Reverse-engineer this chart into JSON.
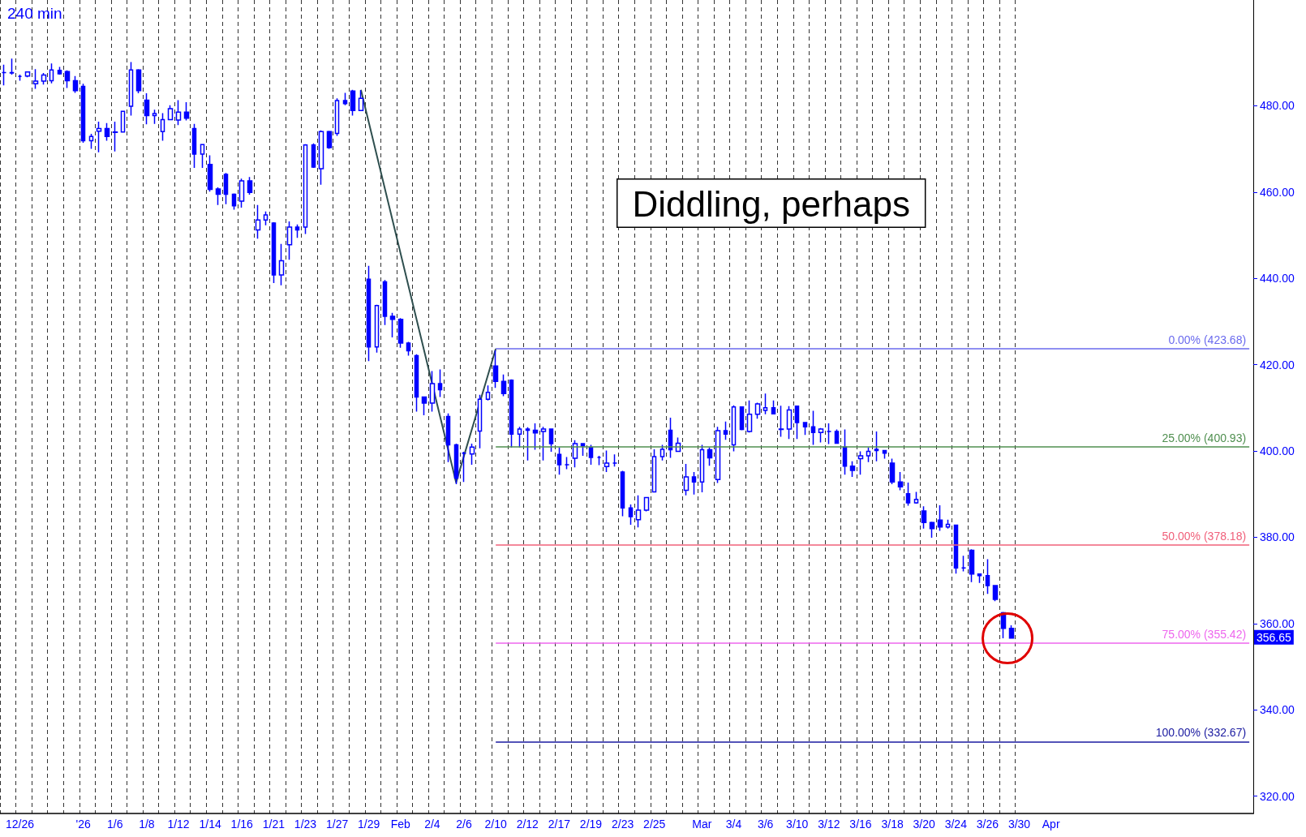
{
  "chart_data": {
    "type": "candlestick",
    "title": "240 min",
    "color": "#0000ff",
    "grid": "x",
    "categories": [
      null,
      null,
      "12/26",
      null,
      null,
      null,
      null,
      null,
      null,
      null,
      "'26",
      null,
      null,
      null,
      "1/6",
      null,
      null,
      null,
      "1/8",
      null,
      null,
      null,
      "1/12",
      null,
      null,
      null,
      "1/14",
      null,
      null,
      null,
      "1/16",
      null,
      null,
      null,
      "1/21",
      null,
      null,
      null,
      "1/23",
      null,
      null,
      null,
      "1/27",
      null,
      null,
      null,
      "1/29",
      null,
      null,
      null,
      "Feb",
      null,
      null,
      null,
      "2/4",
      null,
      null,
      null,
      "2/6",
      null,
      null,
      null,
      "2/10",
      null,
      null,
      null,
      "2/12",
      null,
      null,
      null,
      "2/17",
      null,
      null,
      null,
      "2/19",
      null,
      null,
      null,
      "2/23",
      null,
      null,
      null,
      "2/25",
      null,
      null,
      null,
      null,
      null,
      "Mar",
      null,
      null,
      null,
      "3/4",
      null,
      null,
      null,
      "3/6",
      null,
      null,
      null,
      "3/10",
      null,
      null,
      null,
      "3/12",
      null,
      null,
      null,
      "3/16",
      null,
      null,
      null,
      "3/18",
      null,
      null,
      null,
      "3/20",
      null,
      null,
      null,
      "3/24",
      null,
      null,
      null,
      "3/26",
      null,
      null,
      null,
      "3/30",
      null,
      null,
      null,
      "Apr",
      null,
      null,
      null,
      null,
      null,
      null,
      null,
      null,
      null,
      null,
      null,
      null,
      null,
      null,
      null,
      null,
      null,
      null,
      null,
      null,
      null,
      null,
      null,
      null,
      null
    ],
    "ohlc": [
      [
        487.7,
        489.5,
        484.7,
        487.7
      ],
      [
        487.7,
        490.9,
        487.2,
        487.6
      ],
      [
        486.8,
        487.2,
        485.8,
        486.8
      ],
      [
        486.9,
        487.9,
        486.6,
        487.8
      ],
      [
        485.1,
        488.5,
        483.9,
        485.7
      ],
      [
        485.7,
        487.6,
        484.9,
        487.1
      ],
      [
        485.8,
        489.8,
        485.2,
        488.3
      ],
      [
        488.2,
        489.0,
        487.2,
        487.4
      ],
      [
        487.9,
        488.2,
        484.1,
        485.8
      ],
      [
        485.8,
        486.9,
        483.0,
        483.5
      ],
      [
        484.5,
        485.1,
        471.4,
        471.9
      ],
      [
        471.9,
        473.5,
        470.0,
        472.9
      ],
      [
        474.1,
        476.3,
        469.2,
        474.7
      ],
      [
        474.7,
        476.0,
        471.9,
        472.9
      ],
      [
        473.8,
        476.3,
        469.4,
        473.9
      ],
      [
        473.9,
        478.8,
        473.8,
        478.7
      ],
      [
        479.9,
        490.1,
        477.7,
        488.3
      ],
      [
        488.3,
        488.5,
        482.9,
        483.5
      ],
      [
        481.3,
        482.9,
        475.7,
        477.7
      ],
      [
        477.7,
        479.1,
        475.8,
        478.2
      ],
      [
        474.0,
        478.3,
        471.9,
        476.8
      ],
      [
        476.8,
        480.1,
        476.8,
        479.3
      ],
      [
        476.7,
        481.3,
        475.5,
        478.5
      ],
      [
        478.5,
        480.8,
        476.6,
        477.1
      ],
      [
        474.7,
        475.8,
        465.6,
        468.8
      ],
      [
        468.8,
        471.1,
        465.6,
        471.0
      ],
      [
        466.4,
        468.5,
        460.1,
        460.6
      ],
      [
        460.7,
        461.1,
        457.0,
        459.5
      ],
      [
        464.1,
        464.4,
        457.2,
        459.5
      ],
      [
        459.5,
        459.7,
        455.9,
        456.8
      ],
      [
        457.9,
        463.1,
        456.4,
        462.6
      ],
      [
        462.6,
        463.5,
        459.4,
        459.9
      ],
      [
        451.2,
        457.0,
        449.2,
        453.5
      ],
      [
        453.5,
        455.5,
        452.3,
        454.7
      ],
      [
        452.8,
        453.0,
        438.9,
        440.8
      ],
      [
        440.8,
        448.0,
        438.4,
        444.1
      ],
      [
        447.8,
        453.2,
        444.3,
        451.9
      ],
      [
        451.9,
        452.5,
        449.4,
        451.2
      ],
      [
        451.9,
        471.1,
        450.3,
        470.9
      ],
      [
        470.9,
        471.3,
        465.6,
        465.8
      ],
      [
        465.4,
        474.3,
        461.7,
        474.0
      ],
      [
        474.0,
        474.2,
        470.0,
        470.3
      ],
      [
        473.6,
        481.7,
        473.0,
        481.2
      ],
      [
        481.2,
        483.0,
        480.1,
        480.5
      ],
      [
        483.4,
        483.7,
        477.7,
        478.9
      ],
      [
        478.9,
        483.6,
        478.9,
        481.7
      ],
      [
        439.8,
        442.9,
        420.8,
        424.1
      ],
      [
        424.1,
        433.9,
        422.8,
        433.7
      ],
      [
        439.2,
        439.6,
        429.2,
        431.2
      ],
      [
        431.2,
        432.0,
        426.3,
        430.5
      ],
      [
        430.5,
        430.8,
        423.9,
        425.0
      ],
      [
        425.0,
        425.3,
        422.1,
        423.2
      ],
      [
        422.1,
        422.4,
        409.1,
        412.5
      ],
      [
        412.5,
        412.5,
        408.3,
        411.1
      ],
      [
        411.1,
        418.5,
        409.1,
        415.6
      ],
      [
        415.6,
        418.9,
        412.5,
        414.2
      ],
      [
        408.0,
        408.7,
        397.4,
        401.4
      ],
      [
        401.4,
        401.7,
        392.3,
        393.7
      ],
      [
        399.5,
        399.8,
        392.8,
        399.5
      ],
      [
        399.3,
        401.7,
        396.8,
        400.9
      ],
      [
        404.6,
        413.0,
        400.6,
        412.0
      ],
      [
        412.0,
        415.2,
        411.7,
        413.6
      ],
      [
        419.7,
        423.3,
        414.6,
        416.1
      ],
      [
        416.1,
        417.7,
        412.7,
        413.3
      ],
      [
        416.4,
        416.6,
        400.8,
        403.9
      ],
      [
        403.9,
        405.6,
        400.8,
        405.1
      ],
      [
        405.1,
        405.5,
        397.8,
        404.8
      ],
      [
        404.8,
        406.4,
        400.3,
        404.2
      ],
      [
        404.5,
        405.6,
        397.8,
        405.1
      ],
      [
        405.1,
        405.1,
        399.8,
        401.7
      ],
      [
        399.2,
        400.8,
        394.5,
        396.8
      ],
      [
        396.8,
        398.6,
        395.8,
        396.8
      ],
      [
        398.3,
        402.5,
        396.2,
        401.7
      ],
      [
        401.7,
        401.7,
        398.9,
        401.2
      ],
      [
        400.8,
        401.4,
        396.8,
        398.5
      ],
      [
        398.5,
        398.9,
        396.7,
        398.5
      ],
      [
        396.4,
        400.1,
        395.1,
        397.2
      ],
      [
        397.2,
        399.2,
        396.4,
        397.2
      ],
      [
        395.1,
        395.4,
        384.9,
        386.8
      ],
      [
        386.8,
        387.6,
        382.9,
        384.8
      ],
      [
        384.1,
        389.7,
        382.3,
        386.3
      ],
      [
        386.3,
        389.3,
        386.0,
        389.2
      ],
      [
        390.5,
        400.4,
        390.4,
        398.7
      ],
      [
        398.7,
        401.4,
        397.8,
        400.4
      ],
      [
        404.8,
        407.7,
        398.4,
        400.3
      ],
      [
        399.9,
        403.1,
        399.8,
        401.8
      ],
      [
        390.9,
        397.0,
        389.7,
        394.0
      ],
      [
        394.0,
        395.1,
        389.9,
        392.8
      ],
      [
        392.8,
        401.4,
        390.4,
        400.3
      ],
      [
        400.3,
        400.8,
        396.6,
        398.4
      ],
      [
        393.4,
        405.6,
        392.6,
        404.7
      ],
      [
        404.7,
        406.8,
        402.6,
        403.9
      ],
      [
        401.4,
        410.6,
        399.9,
        410.2
      ],
      [
        410.2,
        410.2,
        404.8,
        405.0
      ],
      [
        404.5,
        411.7,
        404.3,
        408.5
      ],
      [
        408.5,
        411.2,
        407.5,
        410.9
      ],
      [
        409.4,
        413.3,
        408.5,
        410.0
      ],
      [
        410.0,
        411.7,
        408.5,
        408.6
      ],
      [
        405.0,
        410.5,
        403.3,
        405.1
      ],
      [
        405.1,
        410.4,
        402.8,
        409.5
      ],
      [
        410.4,
        410.4,
        402.8,
        406.6
      ],
      [
        406.6,
        406.6,
        403.7,
        405.6
      ],
      [
        405.6,
        409.3,
        401.4,
        404.3
      ],
      [
        404.3,
        405.3,
        402.0,
        405.1
      ],
      [
        404.5,
        406.4,
        401.6,
        404.5
      ],
      [
        404.5,
        405.0,
        401.7,
        401.8
      ],
      [
        400.9,
        405.0,
        394.5,
        396.5
      ],
      [
        396.5,
        397.6,
        394.0,
        395.5
      ],
      [
        398.2,
        399.9,
        394.5,
        398.9
      ],
      [
        398.9,
        400.8,
        397.4,
        399.9
      ],
      [
        400.4,
        404.5,
        397.6,
        400.1
      ],
      [
        400.1,
        400.1,
        398.2,
        399.5
      ],
      [
        397.2,
        398.2,
        392.3,
        392.8
      ],
      [
        392.8,
        395.1,
        390.9,
        391.7
      ],
      [
        390.1,
        392.7,
        387.3,
        388.0
      ],
      [
        388.0,
        390.5,
        387.8,
        388.8
      ],
      [
        386.1,
        387.2,
        382.0,
        383.4
      ],
      [
        383.4,
        383.6,
        379.9,
        382.0
      ],
      [
        384.0,
        387.4,
        381.5,
        382.4
      ],
      [
        382.4,
        384.1,
        382.0,
        383.0
      ],
      [
        382.8,
        382.9,
        371.6,
        372.9
      ],
      [
        372.9,
        375.7,
        372.1,
        372.9
      ],
      [
        377.0,
        377.2,
        369.6,
        371.5
      ],
      [
        371.5,
        371.6,
        369.4,
        371.1
      ],
      [
        371.1,
        374.9,
        366.9,
        368.8
      ],
      [
        368.8,
        368.8,
        365.2,
        365.6
      ],
      [
        362.5,
        362.7,
        356.6,
        358.9
      ],
      [
        358.9,
        359.6,
        356.6,
        356.65
      ],
      null,
      null,
      null,
      null,
      null,
      null,
      null,
      null,
      null,
      null,
      null,
      null,
      null,
      null,
      null,
      null,
      null,
      null,
      null,
      null,
      null,
      null,
      null,
      null,
      null,
      null,
      null,
      null,
      null,
      null
    ],
    "series": [
      {
        "type": "line",
        "color": "#2f4f4f",
        "values": [
          null,
          null,
          null,
          null,
          null,
          null,
          null,
          null,
          null,
          null,
          null,
          null,
          null,
          null,
          null,
          null,
          null,
          null,
          null,
          null,
          null,
          null,
          null,
          null,
          null,
          null,
          null,
          null,
          null,
          null,
          null,
          null,
          null,
          null,
          null,
          null,
          null,
          null,
          null,
          null,
          null,
          null,
          null,
          null,
          null,
          483.7,
          null,
          null,
          null,
          null,
          null,
          null,
          null,
          null,
          null,
          null,
          null,
          392.7,
          null,
          null,
          null,
          null,
          423.7,
          null,
          null,
          null,
          null,
          null,
          null,
          null,
          null,
          null,
          null,
          null,
          null,
          null,
          null,
          null,
          null,
          null,
          null,
          null,
          null,
          null,
          null,
          null,
          null,
          null,
          null,
          null,
          null,
          null,
          null,
          null,
          null,
          null,
          null,
          null,
          null,
          null,
          null,
          null,
          null,
          null,
          null,
          null,
          null,
          null,
          null,
          null,
          null,
          null,
          null,
          null,
          null,
          null,
          null,
          null,
          null,
          null,
          null,
          null,
          null,
          null,
          null,
          null,
          null,
          null,
          null,
          null,
          null,
          null,
          null,
          null,
          null,
          null,
          null,
          null,
          null,
          null,
          null,
          null,
          null,
          null,
          null,
          null,
          null,
          null,
          null,
          null,
          null,
          null,
          null,
          null,
          null,
          null,
          null,
          null
        ]
      }
    ],
    "ylim": [
      316,
      504.5
    ],
    "yticks": [
      {
        "value": 320,
        "label": "320.00"
      },
      {
        "value": 340,
        "label": "340.00"
      },
      {
        "value": 360,
        "label": "360.00"
      },
      {
        "value": 380,
        "label": "380.00"
      },
      {
        "value": 400,
        "label": "400.00"
      },
      {
        "value": 420,
        "label": "420.00"
      },
      {
        "value": 440,
        "label": "440.00"
      },
      {
        "value": 460,
        "label": "460.00"
      },
      {
        "value": 480,
        "label": "480.00"
      }
    ],
    "ref_lines": [
      {
        "axis": "y",
        "value": 423.68,
        "label": "0.00% (423.68)",
        "color": "#6a6aee"
      },
      {
        "axis": "y",
        "value": 400.93,
        "label": "25.00% (400.93)",
        "color": "#4f8f4f"
      },
      {
        "axis": "y",
        "value": 378.18,
        "label": "50.00% (378.18)",
        "color": "#f0607a"
      },
      {
        "axis": "y",
        "value": 355.42,
        "label": "75.00% (355.42)",
        "color": "#ee66ee"
      },
      {
        "axis": "y",
        "value": 332.67,
        "label": "100.00% (332.67)",
        "color": "#1a1aa0"
      }
    ],
    "annotations": [
      "Diddling, perhaps",
      "356.65"
    ]
  }
}
